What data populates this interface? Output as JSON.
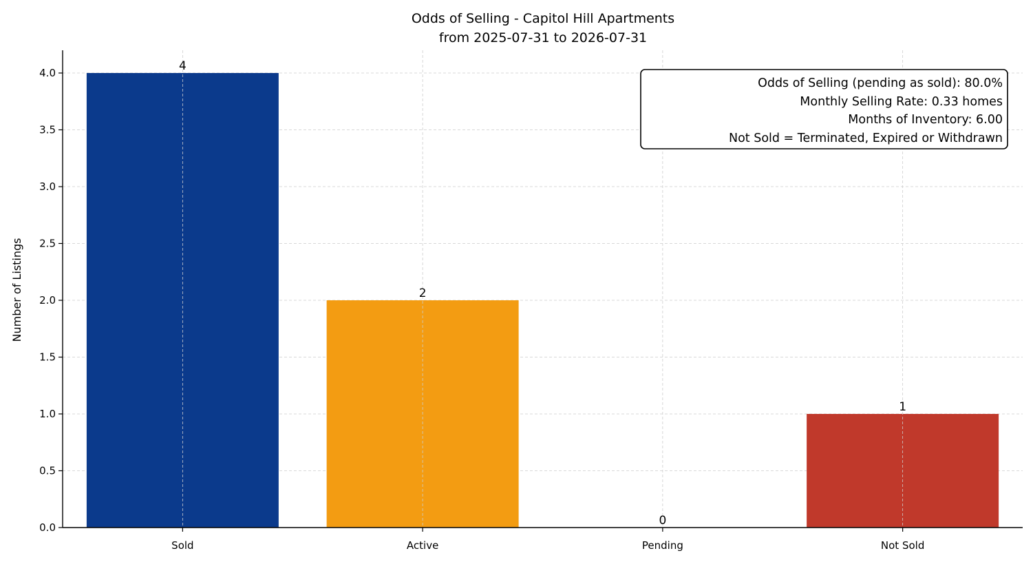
{
  "chart_data": {
    "type": "bar",
    "title": "Odds of Selling - Capitol Hill Apartments",
    "subtitle": "from 2025-07-31 to 2026-07-31",
    "xlabel": "",
    "ylabel": "Number of Listings",
    "categories": [
      "Sold",
      "Active",
      "Pending",
      "Not Sold"
    ],
    "values": [
      4,
      2,
      0,
      1
    ],
    "data_labels": [
      "4",
      "2",
      "0",
      "1"
    ],
    "colors": [
      "#0b3a8c",
      "#f39c12",
      "#7f8c8d",
      "#c0392b"
    ],
    "ylim": [
      0,
      4.2
    ],
    "yticks": [
      0.0,
      0.5,
      1.0,
      1.5,
      2.0,
      2.5,
      3.0,
      3.5,
      4.0
    ],
    "ytick_labels": [
      "0.0",
      "0.5",
      "1.0",
      "1.5",
      "2.0",
      "2.5",
      "3.0",
      "3.5",
      "4.0"
    ],
    "grid": true,
    "info_box": {
      "placement": "top-right",
      "lines": [
        "Odds of Selling (pending as sold): 80.0%",
        "Monthly Selling Rate: 0.33 homes",
        "Months of Inventory: 6.00",
        "Not Sold = Terminated, Expired or Withdrawn"
      ]
    }
  }
}
